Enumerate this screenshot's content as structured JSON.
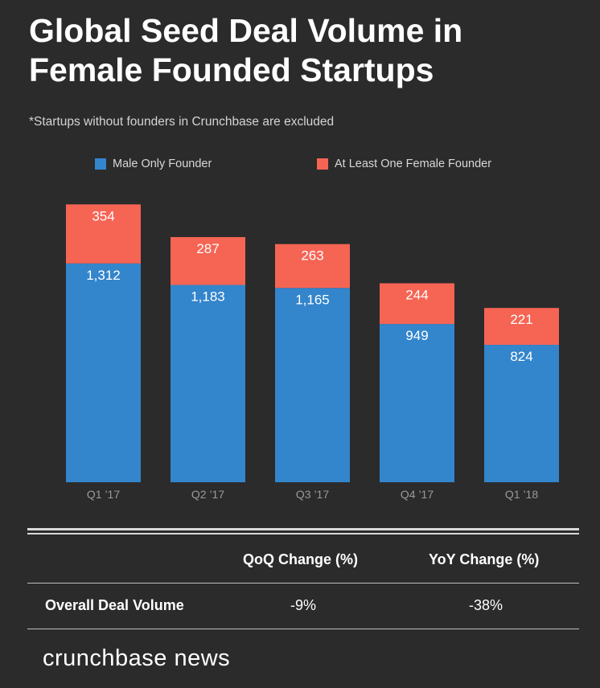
{
  "title": "Global Seed Deal Volume in Female Founded Startups",
  "subtitle": "*Startups without founders in Crunchbase are excluded",
  "colors": {
    "male": "#3385cc",
    "female": "#f66454",
    "background": "#2b2b2b"
  },
  "chart_data": {
    "type": "bar",
    "stacked": true,
    "title": "Global Seed Deal Volume in Female Founded Startups",
    "categories": [
      "Q1 ’17",
      "Q2 ’17",
      "Q3 ’17",
      "Q4 ’17",
      "Q1 ’18"
    ],
    "series": [
      {
        "name": "Male Only Founder",
        "values": [
          1312,
          1183,
          1165,
          949,
          824
        ],
        "labels": [
          "1,312",
          "1,183",
          "1,165",
          "949",
          "824"
        ]
      },
      {
        "name": "At Least One Female Founder",
        "values": [
          354,
          287,
          263,
          244,
          221
        ],
        "labels": [
          "354",
          "287",
          "263",
          "244",
          "221"
        ]
      }
    ],
    "legend": "top",
    "ylim": [
      0,
      1700
    ],
    "xlabel": "",
    "ylabel": ""
  },
  "table": {
    "headers": [
      "QoQ Change (%)",
      "YoY Change (%)"
    ],
    "row": {
      "label": "Overall Deal Volume",
      "qoq": "-9%",
      "yoy": "-38%"
    }
  },
  "brand": "crunchbase news"
}
